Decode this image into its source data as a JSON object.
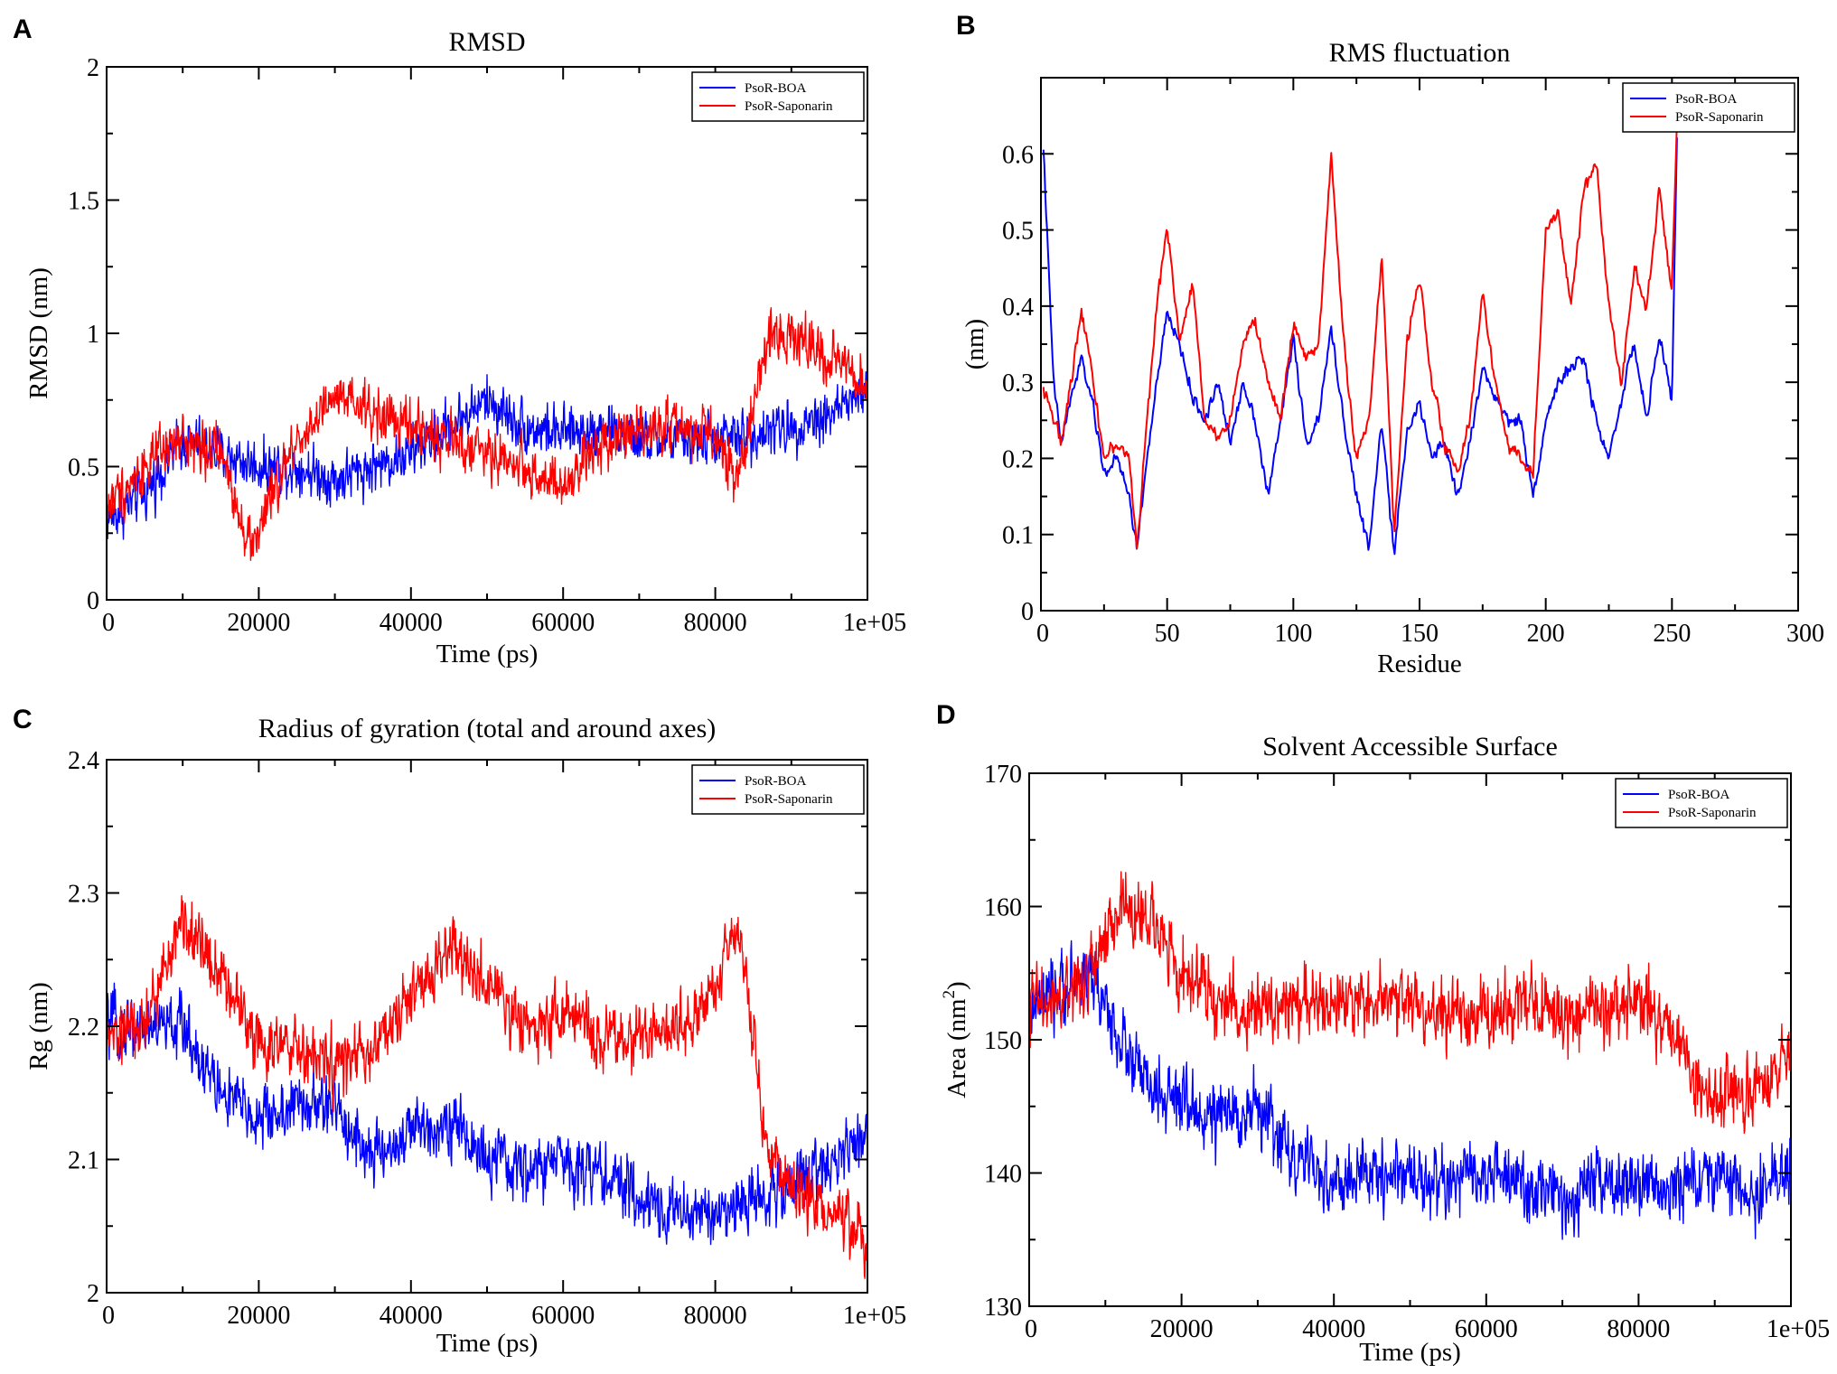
{
  "chart_data": [
    {
      "id": "A",
      "type": "line",
      "panel_label": "A",
      "title": "RMSD",
      "xlabel": "Time (ps)",
      "ylabel": "RMSD (nm)",
      "xlim": [
        0,
        100000
      ],
      "ylim": [
        0,
        2
      ],
      "xticks": [
        0,
        20000,
        40000,
        60000,
        80000,
        100000
      ],
      "xtick_labels": [
        "0",
        "20000",
        "40000",
        "60000",
        "80000",
        "1e+05"
      ],
      "yticks": [
        0,
        0.5,
        1,
        1.5,
        2
      ],
      "ytick_labels": [
        "0",
        "0.5",
        "1",
        "1.5",
        "2"
      ],
      "legend_position": "top-right",
      "noise": 0.09,
      "series": [
        {
          "name": "PsoR-BOA",
          "color": "#0000ff",
          "x": [
            0,
            5000,
            10000,
            15000,
            20000,
            25000,
            30000,
            35000,
            40000,
            45000,
            50000,
            55000,
            60000,
            65000,
            70000,
            75000,
            80000,
            85000,
            90000,
            95000,
            100000
          ],
          "y": [
            0.3,
            0.4,
            0.6,
            0.55,
            0.5,
            0.5,
            0.45,
            0.5,
            0.55,
            0.65,
            0.75,
            0.65,
            0.62,
            0.65,
            0.6,
            0.6,
            0.6,
            0.62,
            0.65,
            0.7,
            0.78
          ]
        },
        {
          "name": "PsoR-Saponarin",
          "color": "#ff0000",
          "x": [
            0,
            5000,
            10000,
            15000,
            19000,
            25000,
            30000,
            35000,
            40000,
            45000,
            50000,
            55000,
            60000,
            65000,
            70000,
            75000,
            80000,
            83000,
            87000,
            90000,
            95000,
            100000
          ],
          "y": [
            0.35,
            0.5,
            0.6,
            0.55,
            0.2,
            0.6,
            0.75,
            0.7,
            0.65,
            0.6,
            0.55,
            0.5,
            0.4,
            0.6,
            0.65,
            0.65,
            0.6,
            0.45,
            1.0,
            1.0,
            0.9,
            0.8
          ]
        }
      ]
    },
    {
      "id": "B",
      "type": "line",
      "panel_label": "B",
      "title": "RMS fluctuation",
      "xlabel": "Residue",
      "ylabel": "(nm)",
      "xlim": [
        0,
        300
      ],
      "ylim": [
        0,
        0.7
      ],
      "xticks": [
        0,
        50,
        100,
        150,
        200,
        250,
        300
      ],
      "xtick_labels": [
        "0",
        "50",
        "100",
        "150",
        "200",
        "250",
        "300"
      ],
      "yticks": [
        0,
        0.1,
        0.2,
        0.3,
        0.4,
        0.5,
        0.6
      ],
      "ytick_labels": [
        "0",
        "0.1",
        "0.2",
        "0.3",
        "0.4",
        "0.5",
        "0.6"
      ],
      "legend_position": "top-right",
      "noise": 0.008,
      "series": [
        {
          "name": "PsoR-BOA",
          "color": "#0000ff",
          "x": [
            1,
            3,
            5,
            8,
            12,
            16,
            20,
            25,
            30,
            35,
            38,
            42,
            46,
            50,
            55,
            60,
            65,
            70,
            75,
            80,
            85,
            90,
            95,
            100,
            105,
            110,
            115,
            120,
            125,
            130,
            135,
            140,
            145,
            150,
            155,
            160,
            165,
            170,
            175,
            180,
            185,
            190,
            195,
            200,
            205,
            210,
            215,
            220,
            225,
            230,
            235,
            240,
            245,
            250,
            252
          ],
          "y": [
            0.61,
            0.45,
            0.3,
            0.22,
            0.28,
            0.33,
            0.28,
            0.18,
            0.2,
            0.15,
            0.08,
            0.2,
            0.3,
            0.39,
            0.35,
            0.28,
            0.25,
            0.3,
            0.22,
            0.3,
            0.25,
            0.15,
            0.25,
            0.36,
            0.22,
            0.25,
            0.37,
            0.25,
            0.15,
            0.08,
            0.25,
            0.07,
            0.24,
            0.27,
            0.2,
            0.22,
            0.15,
            0.22,
            0.32,
            0.28,
            0.25,
            0.25,
            0.15,
            0.25,
            0.3,
            0.32,
            0.33,
            0.25,
            0.2,
            0.28,
            0.35,
            0.25,
            0.36,
            0.28,
            0.62
          ]
        },
        {
          "name": "PsoR-Saponarin",
          "color": "#ff0000",
          "x": [
            1,
            3,
            5,
            8,
            12,
            16,
            20,
            25,
            30,
            35,
            38,
            42,
            46,
            50,
            55,
            60,
            65,
            70,
            75,
            80,
            85,
            90,
            95,
            100,
            105,
            110,
            115,
            120,
            125,
            130,
            135,
            140,
            145,
            150,
            155,
            160,
            165,
            170,
            175,
            180,
            185,
            190,
            195,
            200,
            205,
            210,
            215,
            220,
            225,
            230,
            235,
            240,
            245,
            250,
            252
          ],
          "y": [
            0.29,
            0.28,
            0.25,
            0.22,
            0.3,
            0.4,
            0.32,
            0.2,
            0.22,
            0.2,
            0.08,
            0.25,
            0.4,
            0.51,
            0.35,
            0.43,
            0.25,
            0.23,
            0.25,
            0.35,
            0.38,
            0.3,
            0.25,
            0.38,
            0.33,
            0.35,
            0.6,
            0.35,
            0.2,
            0.25,
            0.47,
            0.1,
            0.35,
            0.44,
            0.3,
            0.22,
            0.18,
            0.25,
            0.42,
            0.3,
            0.22,
            0.2,
            0.18,
            0.5,
            0.52,
            0.4,
            0.55,
            0.59,
            0.4,
            0.3,
            0.45,
            0.4,
            0.55,
            0.42,
            0.64
          ]
        }
      ]
    },
    {
      "id": "C",
      "type": "line",
      "panel_label": "C",
      "title": "Radius of gyration (total and around axes)",
      "xlabel": "Time (ps)",
      "ylabel": "Rg (nm)",
      "xlim": [
        0,
        100000
      ],
      "ylim": [
        2,
        2.4
      ],
      "xticks": [
        0,
        20000,
        40000,
        60000,
        80000,
        100000
      ],
      "xtick_labels": [
        "0",
        "20000",
        "40000",
        "60000",
        "80000",
        "1e+05"
      ],
      "yticks": [
        2,
        2.1,
        2.2,
        2.3,
        2.4
      ],
      "ytick_labels": [
        "2",
        "2.1",
        "2.2",
        "2.3",
        "2.4"
      ],
      "legend_position": "top-right",
      "noise": 0.022,
      "series": [
        {
          "name": "PsoR-BOA",
          "color": "#0000ff",
          "x": [
            0,
            5000,
            10000,
            15000,
            20000,
            25000,
            30000,
            35000,
            40000,
            45000,
            50000,
            55000,
            60000,
            65000,
            70000,
            75000,
            80000,
            85000,
            90000,
            95000,
            100000
          ],
          "y": [
            2.2,
            2.2,
            2.2,
            2.15,
            2.13,
            2.14,
            2.14,
            2.1,
            2.12,
            2.13,
            2.1,
            2.09,
            2.1,
            2.09,
            2.07,
            2.06,
            2.06,
            2.07,
            2.08,
            2.1,
            2.12
          ]
        },
        {
          "name": "PsoR-Saponarin",
          "color": "#ff0000",
          "x": [
            0,
            5000,
            10000,
            15000,
            20000,
            25000,
            30000,
            35000,
            40000,
            45000,
            50000,
            55000,
            60000,
            65000,
            70000,
            75000,
            80000,
            83000,
            87000,
            90000,
            95000,
            100000
          ],
          "y": [
            2.19,
            2.2,
            2.28,
            2.24,
            2.19,
            2.18,
            2.17,
            2.18,
            2.22,
            2.26,
            2.23,
            2.2,
            2.21,
            2.19,
            2.19,
            2.2,
            2.23,
            2.28,
            2.1,
            2.08,
            2.06,
            2.04
          ]
        }
      ]
    },
    {
      "id": "D",
      "type": "line",
      "panel_label": "D",
      "title": "Solvent Accessible Surface",
      "xlabel": "Time (ps)",
      "ylabel": "Area (nm",
      "ylabel_superscript": "2",
      "ylabel_suffix": ")",
      "xlim": [
        0,
        100000
      ],
      "ylim": [
        130,
        170
      ],
      "xticks": [
        0,
        20000,
        40000,
        60000,
        80000,
        100000
      ],
      "xtick_labels": [
        "0",
        "20000",
        "40000",
        "60000",
        "80000",
        "1e+05"
      ],
      "yticks": [
        130,
        140,
        150,
        160,
        170
      ],
      "ytick_labels": [
        "130",
        "140",
        "150",
        "160",
        "170"
      ],
      "legend_position": "top-right",
      "noise": 2.4,
      "series": [
        {
          "name": "PsoR-BOA",
          "color": "#0000ff",
          "x": [
            0,
            5000,
            8000,
            12000,
            16000,
            20000,
            25000,
            30000,
            35000,
            40000,
            45000,
            50000,
            55000,
            60000,
            65000,
            70000,
            75000,
            80000,
            85000,
            90000,
            95000,
            100000
          ],
          "y": [
            152,
            154,
            155,
            150,
            146,
            145,
            144,
            145,
            141,
            139,
            140,
            140,
            139,
            140,
            139,
            138,
            139,
            139,
            139,
            140,
            138,
            141
          ]
        },
        {
          "name": "PsoR-Saponarin",
          "color": "#ff0000",
          "x": [
            0,
            5000,
            8000,
            12000,
            16000,
            20000,
            25000,
            30000,
            35000,
            40000,
            45000,
            50000,
            55000,
            60000,
            65000,
            70000,
            75000,
            80000,
            85000,
            87000,
            90000,
            95000,
            100000
          ],
          "y": [
            153,
            153,
            155,
            160,
            159,
            155,
            153,
            152,
            153,
            153,
            153,
            153,
            152,
            152,
            153,
            152,
            152,
            153,
            151,
            147,
            146,
            146,
            149
          ]
        }
      ]
    }
  ]
}
